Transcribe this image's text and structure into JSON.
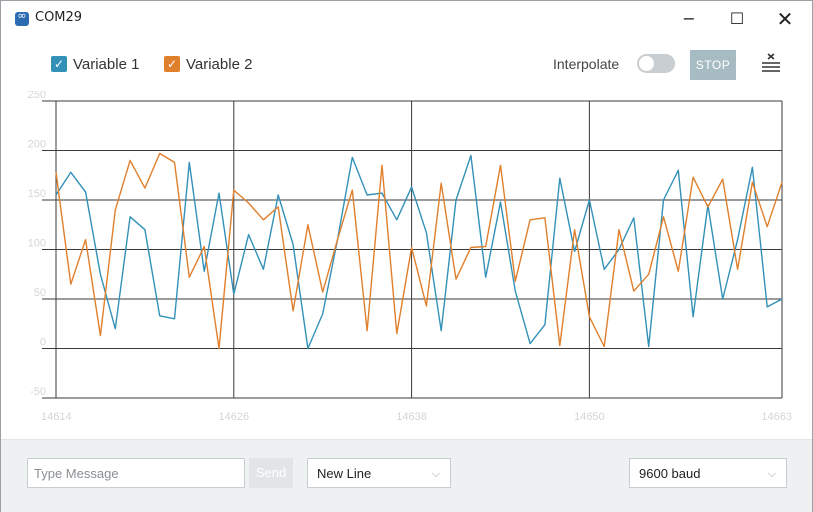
{
  "window": {
    "title": "COM29",
    "app_icon": "arduino-infinity-icon",
    "minimize_icon": "−",
    "maximize_icon": "☐",
    "close_icon": "✕"
  },
  "toolbar": {
    "legend": [
      {
        "label": "Variable 1",
        "color": "#3391b8",
        "checked": true,
        "checkmark": "✓"
      },
      {
        "label": "Variable 2",
        "color": "#e07f2c",
        "checked": true,
        "checkmark": "✓"
      }
    ],
    "interpolate_label": "Interpolate",
    "interpolate_on": false,
    "stop_label": "STOP",
    "clear_icon": "clear-list-icon"
  },
  "chart_data": {
    "type": "line",
    "ylim": [
      -50,
      250
    ],
    "yticks": [
      250,
      200,
      150,
      100,
      50,
      0,
      -50
    ],
    "xlim": [
      14614,
      14663
    ],
    "xticks": [
      14614,
      14626,
      14638,
      14650,
      14663
    ],
    "grid": true,
    "series": [
      {
        "name": "Variable 1",
        "color": "#3391b8",
        "values": [
          155,
          178,
          158,
          75,
          20,
          133,
          120,
          33,
          30,
          188,
          78,
          157,
          55,
          115,
          80,
          155,
          105,
          0,
          35,
          110,
          193,
          155,
          157,
          130,
          163,
          117,
          18,
          150,
          195,
          72,
          148,
          58,
          5,
          24,
          172,
          98,
          150,
          80,
          100,
          132,
          2,
          150,
          180,
          32,
          145,
          50,
          110,
          183,
          42,
          50
        ]
      },
      {
        "name": "Variable 2",
        "color": "#e07f2c",
        "values": [
          178,
          65,
          110,
          13,
          140,
          190,
          162,
          197,
          188,
          72,
          103,
          0,
          160,
          147,
          130,
          143,
          38,
          125,
          57,
          110,
          160,
          18,
          185,
          15,
          102,
          43,
          167,
          70,
          102,
          103,
          185,
          68,
          130,
          132,
          3,
          120,
          32,
          2,
          120,
          58,
          75,
          133,
          78,
          173,
          143,
          171,
          80,
          168,
          123,
          168
        ]
      }
    ]
  },
  "footer": {
    "message_placeholder": "Type Message",
    "message_value": "",
    "send_label": "Send",
    "line_ending": "New Line",
    "baud_rate": "9600 baud",
    "chevron": "⌵"
  }
}
